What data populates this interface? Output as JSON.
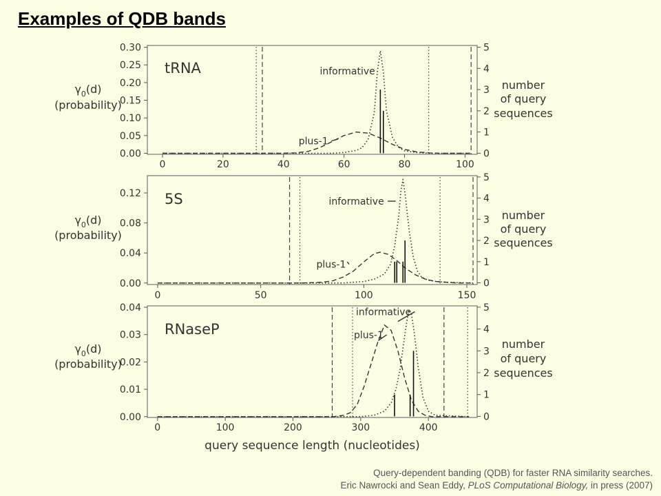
{
  "title": "Examples of QDB bands",
  "caption": {
    "line1": "Query-dependent banding (QDB) for faster RNA similarity searches.",
    "line2_prefix": "Eric Nawrocki and Sean Eddy, ",
    "line2_journal": "PLoS Computational Biology,",
    "line2_suffix": " in press (2007)"
  },
  "chart_data": [
    {
      "type": "line",
      "title": "tRNA",
      "xlabel": "",
      "ylabel": [
        "γ0(d)",
        "(probability)"
      ],
      "y2label": [
        "number",
        "of query",
        "sequences"
      ],
      "xlim": [
        -5,
        104
      ],
      "ylim": [
        -0.003,
        0.305
      ],
      "xticks": [
        0,
        20,
        40,
        60,
        80,
        100
      ],
      "yticks": [
        0.0,
        0.05,
        0.1,
        0.15,
        0.2,
        0.25,
        0.3
      ],
      "ytick_labels": [
        "0.00",
        "0.05",
        "0.10",
        "0.15",
        "0.20",
        "0.25",
        "0.30"
      ],
      "y2lim": [
        -0.05,
        5.08
      ],
      "y2ticks": [
        0,
        1,
        2,
        3,
        4,
        5
      ],
      "series": [
        {
          "name": "plus-1",
          "style": "dashed",
          "x": [
            0,
            40,
            44,
            48,
            52,
            56,
            60,
            64,
            68,
            72,
            76,
            80,
            84,
            88,
            92,
            96,
            100,
            102
          ],
          "y": [
            0,
            0,
            0.001,
            0.005,
            0.016,
            0.033,
            0.05,
            0.06,
            0.057,
            0.043,
            0.025,
            0.011,
            0.004,
            0.001,
            0,
            0,
            0,
            0
          ]
        },
        {
          "name": "informative",
          "style": "dotted",
          "x": [
            0,
            56,
            60,
            64,
            66,
            68,
            70,
            71,
            72,
            73,
            74,
            76,
            78,
            80,
            84,
            88,
            102
          ],
          "y": [
            0,
            0,
            0.002,
            0.008,
            0.016,
            0.04,
            0.115,
            0.23,
            0.29,
            0.23,
            0.12,
            0.045,
            0.017,
            0.007,
            0.002,
            0,
            0
          ]
        }
      ],
      "bars": [
        {
          "x": 72,
          "count": 3
        },
        {
          "x": 73,
          "count": 2
        }
      ],
      "bands": {
        "dashed": [
          33,
          102
        ],
        "dotted": [
          31,
          88
        ]
      },
      "labels": {
        "informative": {
          "text": "informative",
          "x": 52,
          "y": 0.233,
          "tx": 71.5,
          "ty": 0.233
        },
        "plus1": {
          "text": "plus-1",
          "x": 45,
          "y": 0.035,
          "tx": 58,
          "ty": 0.04
        }
      }
    },
    {
      "type": "line",
      "title": "5S",
      "xlabel": "",
      "ylabel": [
        "γ0(d)",
        "(probability)"
      ],
      "y2label": [
        "number",
        "of query",
        "sequences"
      ],
      "xlim": [
        -5,
        155
      ],
      "ylim": [
        -0.002,
        0.143
      ],
      "xticks": [
        0,
        50,
        100,
        150
      ],
      "yticks": [
        0.0,
        0.04,
        0.08,
        0.12
      ],
      "ytick_labels": [
        "0.00",
        "0.04",
        "0.08",
        "0.12"
      ],
      "y2lim": [
        -0.08,
        5.06
      ],
      "y2ticks": [
        0,
        1,
        2,
        3,
        4,
        5
      ],
      "series": [
        {
          "name": "plus-1",
          "style": "dashed",
          "x": [
            0,
            70,
            80,
            85,
            90,
            95,
            100,
            105,
            108,
            112,
            116,
            120,
            125,
            130,
            135,
            140,
            145,
            150,
            153
          ],
          "y": [
            0,
            0,
            0.001,
            0.003,
            0.008,
            0.016,
            0.028,
            0.039,
            0.041,
            0.038,
            0.03,
            0.02,
            0.011,
            0.005,
            0.002,
            0.001,
            0,
            0,
            0
          ]
        },
        {
          "name": "informative",
          "style": "dotted",
          "x": [
            0,
            90,
            100,
            105,
            110,
            113,
            115,
            117,
            118,
            119,
            120,
            122,
            124,
            126,
            128,
            131,
            135,
            140,
            153
          ],
          "y": [
            0,
            0,
            0.002,
            0.005,
            0.012,
            0.025,
            0.05,
            0.09,
            0.122,
            0.138,
            0.12,
            0.07,
            0.035,
            0.016,
            0.008,
            0.004,
            0.002,
            0.001,
            0
          ]
        }
      ],
      "bars": [
        {
          "x": 115,
          "count": 1
        },
        {
          "x": 116,
          "count": 1
        },
        {
          "x": 119,
          "count": 1
        },
        {
          "x": 120,
          "count": 2
        }
      ],
      "bands": {
        "dashed": [
          64,
          153
        ],
        "dotted": [
          69,
          137
        ]
      },
      "labels": {
        "informative": {
          "text": "informative",
          "x": 83,
          "y": 0.109,
          "tx": 115.5,
          "ty": 0.109
        },
        "plus1": {
          "text": "plus-1",
          "x": 77,
          "y": 0.025,
          "tx": 92,
          "ty": 0.028
        }
      }
    },
    {
      "type": "line",
      "title": "RNaseP",
      "xlabel": "query sequence length (nucleotides)",
      "ylabel": [
        "γ0(d)",
        "(probability)"
      ],
      "y2label": [
        "number",
        "of query",
        "sequences"
      ],
      "xlim": [
        -15,
        472
      ],
      "ylim": [
        -0.0003,
        0.0405
      ],
      "xticks": [
        0,
        100,
        200,
        300,
        400
      ],
      "yticks": [
        0.0,
        0.01,
        0.02,
        0.03,
        0.04
      ],
      "ytick_labels": [
        "0.00",
        "0.01",
        "0.02",
        "0.03",
        "0.04"
      ],
      "y2lim": [
        -0.05,
        5.06
      ],
      "y2ticks": [
        0,
        1,
        2,
        3,
        4,
        5
      ],
      "series": [
        {
          "name": "plus-1",
          "style": "dashed",
          "x": [
            0,
            260,
            275,
            285,
            295,
            305,
            315,
            325,
            335,
            345,
            355,
            365,
            375,
            385,
            395,
            405,
            460
          ],
          "y": [
            0,
            0,
            0.0005,
            0.0015,
            0.0045,
            0.011,
            0.019,
            0.027,
            0.0335,
            0.0315,
            0.024,
            0.014,
            0.006,
            0.002,
            0.0005,
            0,
            0
          ]
        },
        {
          "name": "informative",
          "style": "dotted",
          "x": [
            0,
            300,
            320,
            335,
            345,
            352,
            358,
            363,
            367,
            371,
            375,
            379,
            385,
            392,
            400,
            410,
            460
          ],
          "y": [
            0,
            0,
            0.0005,
            0.002,
            0.005,
            0.01,
            0.017,
            0.026,
            0.033,
            0.039,
            0.0375,
            0.031,
            0.018,
            0.007,
            0.002,
            0.0005,
            0
          ]
        }
      ],
      "bars": [
        {
          "x": 350,
          "count": 1
        },
        {
          "x": 373,
          "count": 1
        },
        {
          "x": 378,
          "count": 3
        }
      ],
      "bands": {
        "dashed": [
          258,
          423
        ],
        "dotted": [
          288,
          458
        ]
      },
      "labels": {
        "informative": {
          "text": "informative",
          "x": 293,
          "y": 0.0384,
          "tx": 355,
          "ty": 0.0348
        },
        "plus1": {
          "text": "plus-1",
          "x": 290,
          "y": 0.0299,
          "tx": 326,
          "ty": 0.0278
        }
      }
    }
  ]
}
